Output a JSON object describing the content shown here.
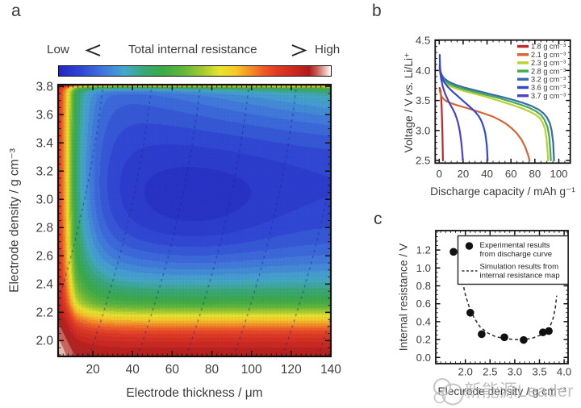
{
  "panel_letters": {
    "a": "a",
    "b": "b",
    "c": "c"
  },
  "watermark": {
    "text": "新能源Leader"
  },
  "chart_data": [
    {
      "type": "heatmap",
      "panel": "a",
      "title_legend": {
        "low": "Low",
        "title": "Total internal resistance",
        "high": "High"
      },
      "xlabel": "Electrode thickness / μm",
      "ylabel": "Electrode density / g cm⁻³",
      "x_range": [
        2.46,
        140
      ],
      "y_range": [
        1.888,
        3.812
      ],
      "x_ticks": [
        20,
        40,
        60,
        80,
        100,
        120,
        140
      ],
      "y_ticks": [
        2.0,
        2.2,
        2.4,
        2.6,
        2.8,
        3.0,
        3.2,
        3.4,
        3.6,
        3.8
      ],
      "x_minor_step": 2.5,
      "y_minor_step": 0.05,
      "colormap": [
        [
          0,
          "#2327c0"
        ],
        [
          0.08,
          "#2f45d5"
        ],
        [
          0.16,
          "#3f75dd"
        ],
        [
          0.24,
          "#45a8cf"
        ],
        [
          0.31,
          "#3aa878"
        ],
        [
          0.38,
          "#3aaa48"
        ],
        [
          0.46,
          "#63b83a"
        ],
        [
          0.53,
          "#a5cb30"
        ],
        [
          0.59,
          "#e8e42e"
        ],
        [
          0.65,
          "#f6c829"
        ],
        [
          0.7,
          "#f59426"
        ],
        [
          0.75,
          "#ee5f26"
        ],
        [
          0.8,
          "#e23b24"
        ],
        [
          0.87,
          "#cb2720"
        ],
        [
          0.92,
          "#ad1b1b"
        ],
        [
          0.95,
          "#c96058"
        ],
        [
          0.975,
          "#e7aca4"
        ],
        [
          1,
          "#ffffff"
        ]
      ],
      "quant_step": 0.028,
      "base_level": 0.05,
      "field_model": {
        "left": {
          "amp": 0.9,
          "mid": 9,
          "width": 3.2,
          "tail_amp": 0.3,
          "tail_start": 11,
          "tail_scale": 9
        },
        "bottom": {
          "amp": 0.95,
          "mid": 0.33,
          "width": 0.11,
          "tail_amp": 0.42,
          "tail_start": 0.35,
          "tail_scale": 0.28
        },
        "top": {
          "amp": 0.8,
          "scale": 0.016
        },
        "top_right": {
          "d0": 2.95,
          "span": 0.85,
          "pow": 2.4,
          "base": 0.03,
          "slope": 0.24
        },
        "center_min": {
          "t": 70,
          "d": 2.9,
          "t_sigma": 45,
          "d_sigma": 0.42,
          "depth": 0.055
        }
      },
      "contour_lines": {
        "bottoms_um": [
          -6.5,
          18,
          42.5,
          67,
          91,
          115.5,
          133.5
        ],
        "shift_um": [
          48,
          -16.3
        ],
        "color": "rgba(23,42,138,0.62)",
        "dash": [
          3,
          4.5
        ]
      }
    },
    {
      "type": "line",
      "panel": "b",
      "xlabel": "Discharge capacity / mAh g⁻¹",
      "ylabel_pre": "Voltage / V ",
      "ylabel_vs": "vs.",
      "ylabel_post": " Li/Li⁺",
      "x_range": [
        -3.4,
        109.6
      ],
      "y_range": [
        2.455,
        4.51
      ],
      "x_ticks": [
        0,
        20,
        40,
        60,
        80,
        100
      ],
      "y_ticks": [
        2.5,
        3.0,
        3.5,
        4.0,
        4.5
      ],
      "x_minor_step": 5,
      "y_minor_step": 0.1,
      "series": [
        {
          "name": "1.8 g cm⁻³",
          "color": "#c1272d",
          "points": [
            [
              0.3,
              3.71
            ],
            [
              0.7,
              3.69
            ],
            [
              1.2,
              3.64
            ],
            [
              1.6,
              3.55
            ],
            [
              2.0,
              3.4
            ],
            [
              2.3,
              3.22
            ],
            [
              2.6,
              3.0
            ],
            [
              2.9,
              2.72
            ],
            [
              3.1,
              2.5
            ]
          ]
        },
        {
          "name": "2.1 g cm⁻³",
          "color": "#d96333",
          "points": [
            [
              0.3,
              3.67
            ],
            [
              1,
              3.62
            ],
            [
              2.5,
              3.55
            ],
            [
              5,
              3.5
            ],
            [
              9,
              3.46
            ],
            [
              15,
              3.42
            ],
            [
              22,
              3.38
            ],
            [
              30,
              3.33
            ],
            [
              38,
              3.28
            ],
            [
              45,
              3.23
            ],
            [
              51,
              3.17
            ],
            [
              56,
              3.11
            ],
            [
              61,
              3.03
            ],
            [
              65,
              2.95
            ],
            [
              69,
              2.84
            ],
            [
              72,
              2.72
            ],
            [
              74.5,
              2.58
            ],
            [
              75.5,
              2.5
            ]
          ]
        },
        {
          "name": "2.3 g cm⁻³",
          "color": "#bccf35",
          "points": [
            [
              0.3,
              4.0
            ],
            [
              1,
              3.93
            ],
            [
              2,
              3.87
            ],
            [
              4,
              3.81
            ],
            [
              8,
              3.75
            ],
            [
              14,
              3.7
            ],
            [
              22,
              3.65
            ],
            [
              30,
              3.61
            ],
            [
              38,
              3.57
            ],
            [
              46,
              3.52
            ],
            [
              54,
              3.47
            ],
            [
              62,
              3.42
            ],
            [
              69,
              3.37
            ],
            [
              75,
              3.32
            ],
            [
              80,
              3.27
            ],
            [
              84,
              3.21
            ],
            [
              86.5,
              3.13
            ],
            [
              88.5,
              3.02
            ],
            [
              89.8,
              2.85
            ],
            [
              90.6,
              2.65
            ],
            [
              91,
              2.5
            ]
          ]
        },
        {
          "name": "2.8 g cm⁻³",
          "color": "#3faf49",
          "points": [
            [
              0.3,
              4.03
            ],
            [
              1,
              3.96
            ],
            [
              2,
              3.9
            ],
            [
              4,
              3.84
            ],
            [
              8,
              3.78
            ],
            [
              14,
              3.73
            ],
            [
              22,
              3.68
            ],
            [
              30,
              3.64
            ],
            [
              40,
              3.59
            ],
            [
              50,
              3.54
            ],
            [
              60,
              3.48
            ],
            [
              68,
              3.43
            ],
            [
              75,
              3.38
            ],
            [
              81,
              3.32
            ],
            [
              85,
              3.26
            ],
            [
              88,
              3.18
            ],
            [
              90.5,
              3.06
            ],
            [
              92,
              2.9
            ],
            [
              93,
              2.65
            ],
            [
              93.3,
              2.5
            ]
          ]
        },
        {
          "name": "3.2 g cm⁻³",
          "color": "#3a68b2",
          "points": [
            [
              0.3,
              4.06
            ],
            [
              1,
              3.99
            ],
            [
              2,
              3.93
            ],
            [
              4,
              3.87
            ],
            [
              8,
              3.81
            ],
            [
              14,
              3.76
            ],
            [
              22,
              3.71
            ],
            [
              32,
              3.66
            ],
            [
              42,
              3.61
            ],
            [
              52,
              3.56
            ],
            [
              62,
              3.51
            ],
            [
              70,
              3.46
            ],
            [
              77,
              3.41
            ],
            [
              83,
              3.35
            ],
            [
              87,
              3.29
            ],
            [
              90,
              3.22
            ],
            [
              92.5,
              3.12
            ],
            [
              94,
              3.0
            ],
            [
              95.3,
              2.8
            ],
            [
              96,
              2.5
            ]
          ]
        },
        {
          "name": "3.6 g cm⁻³",
          "color": "#2f48d8",
          "points": [
            [
              0.4,
              4.26
            ],
            [
              0.6,
              4.1
            ],
            [
              1,
              3.97
            ],
            [
              2,
              3.89
            ],
            [
              4,
              3.81
            ],
            [
              7,
              3.73
            ],
            [
              11,
              3.65
            ],
            [
              15,
              3.58
            ],
            [
              19,
              3.51
            ],
            [
              23,
              3.44
            ],
            [
              27,
              3.37
            ],
            [
              30,
              3.31
            ],
            [
              33,
              3.24
            ],
            [
              35,
              3.17
            ],
            [
              37,
              3.07
            ],
            [
              38.5,
              2.95
            ],
            [
              39.8,
              2.75
            ],
            [
              40.5,
              2.5
            ]
          ]
        },
        {
          "name": "3.7 g cm⁻³",
          "color": "#4b42c9",
          "points": [
            [
              0.4,
              4.1
            ],
            [
              0.8,
              3.98
            ],
            [
              1.5,
              3.87
            ],
            [
              3,
              3.73
            ],
            [
              5,
              3.61
            ],
            [
              7,
              3.52
            ],
            [
              9,
              3.44
            ],
            [
              11,
              3.37
            ],
            [
              13,
              3.29
            ],
            [
              14.5,
              3.21
            ],
            [
              16,
              3.11
            ],
            [
              17.3,
              2.98
            ],
            [
              18.5,
              2.8
            ],
            [
              19.4,
              2.6
            ],
            [
              19.7,
              2.5
            ]
          ]
        }
      ]
    },
    {
      "type": "scatter",
      "panel": "c",
      "xlabel": "Electrode density / g cm⁻³",
      "ylabel": "Internal resistance / V",
      "x_range": [
        1.4,
        4.08
      ],
      "y_range": [
        -0.07,
        1.416
      ],
      "x_ticks": [
        2.0,
        2.5,
        3.0,
        3.5,
        4.0
      ],
      "y_ticks": [
        0.0,
        0.2,
        0.4,
        0.6,
        0.8,
        1.0,
        1.2
      ],
      "x_minor_step": 0.1,
      "y_minor_step": 0.05,
      "experimental": {
        "label_line1": "Experimental results",
        "label_line2": "from discharge curve",
        "points": [
          [
            1.76,
            1.18
          ],
          [
            2.1,
            0.5
          ],
          [
            2.33,
            0.26
          ],
          [
            2.79,
            0.225
          ],
          [
            3.18,
            0.195
          ],
          [
            3.57,
            0.28
          ],
          [
            3.69,
            0.295
          ]
        ]
      },
      "simulation": {
        "label_line1": "Simulation results from",
        "label_line2": "internal resistance map",
        "curve": [
          [
            1.88,
            1.04
          ],
          [
            1.93,
            0.88
          ],
          [
            2.0,
            0.7
          ],
          [
            2.08,
            0.56
          ],
          [
            2.18,
            0.44
          ],
          [
            2.3,
            0.34
          ],
          [
            2.45,
            0.275
          ],
          [
            2.6,
            0.235
          ],
          [
            2.8,
            0.21
          ],
          [
            3.0,
            0.2
          ],
          [
            3.2,
            0.2
          ],
          [
            3.35,
            0.215
          ],
          [
            3.5,
            0.245
          ],
          [
            3.62,
            0.285
          ],
          [
            3.7,
            0.33
          ],
          [
            3.77,
            0.42
          ],
          [
            3.82,
            0.55
          ],
          [
            3.85,
            0.69
          ]
        ]
      }
    }
  ]
}
